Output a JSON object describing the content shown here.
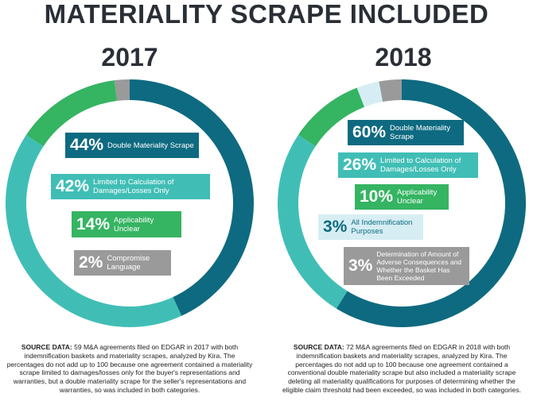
{
  "title": "MATERIALITY SCRAPE INCLUDED",
  "colors": {
    "double": "#0e6a80",
    "limited": "#40beb6",
    "applicability": "#35b462",
    "all_indemnification": "#d6eef3",
    "compromise": "#9a9a9a",
    "determination": "#9a9a9a"
  },
  "chart_data": [
    {
      "type": "pie",
      "title": "2017",
      "slices": [
        {
          "key": "double",
          "pct": "44%",
          "label": "Double Materiality Scrape",
          "value": 44
        },
        {
          "key": "limited",
          "pct": "42%",
          "label": "Limited to Calculation of Damages/Losses Only",
          "value": 42
        },
        {
          "key": "applicability",
          "pct": "14%",
          "label": "Applicability Unclear",
          "value": 14
        },
        {
          "key": "compromise",
          "pct": "2%",
          "label": "Compromise Language",
          "value": 2
        }
      ],
      "source_label": "SOURCE DATA:",
      "source_text": "59 M&A agreements filed on EDGAR in 2017 with both indemnification baskets and materiality scrapes, analyzed by Kira. The percentages do not add up to 100 because one agreement contained a materiality scrape limited to damages/losses only for the buyer's representations and warranties, but a double materiality scrape for the seller's representations and warranties, so was included in both categories."
    },
    {
      "type": "pie",
      "title": "2018",
      "slices": [
        {
          "key": "double",
          "pct": "60%",
          "label": "Double Materiality Scrape",
          "value": 60
        },
        {
          "key": "limited",
          "pct": "26%",
          "label": "Limited to Calculation of Damages/Losses Only",
          "value": 26
        },
        {
          "key": "applicability",
          "pct": "10%",
          "label": "Applicability Unclear",
          "value": 10
        },
        {
          "key": "all_indemnification",
          "pct": "3%",
          "label": "All Indemnification Purposes",
          "value": 3
        },
        {
          "key": "determination",
          "pct": "3%",
          "label": "Determination of Amount of Adverse Consequences and Whether the Basket Has Been Exceeded",
          "value": 3
        }
      ],
      "source_label": "SOURCE DATA:",
      "source_text": "72 M&A agreements filed on EDGAR in 2018 with both indemnification baskets and materiality scrapes, analyzed by Kira. The percentages do not add up to 100 because one agreement contained a conventional double materiality scrape but also included a materiality scrape deleting all materiality qualifications for purposes of determining whether the eligible claim threshold had been exceeded, so was included in both categories."
    }
  ]
}
